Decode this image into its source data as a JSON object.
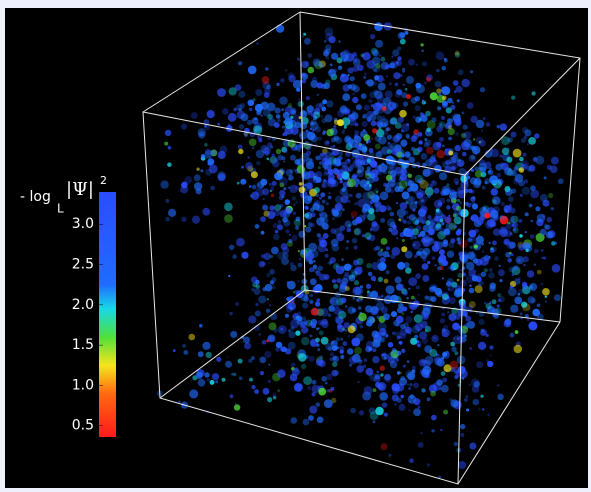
{
  "chart_data": {
    "type": "volume-render",
    "colorbar": {
      "label": "- log",
      "label_sub": "L",
      "label_main": "|Ψ|",
      "label_sup": "2",
      "lim": [
        0.36,
        3.4
      ],
      "ticks": [
        0.5,
        {
          "value": 1,
          "label": "1.0"
        },
        1.5,
        {
          "value": 2,
          "label": "2.0"
        },
        2.5,
        {
          "value": 3,
          "label": "3.0"
        }
      ],
      "colormap": [
        {
          "value": 0.36,
          "color": "#ff1a1a"
        },
        {
          "value": 0.9,
          "color": "#ff6a10"
        },
        {
          "value": 1.25,
          "color": "#f5e51e"
        },
        {
          "value": 1.6,
          "color": "#4fe03a"
        },
        {
          "value": 1.95,
          "color": "#19d8e8"
        },
        {
          "value": 2.25,
          "color": "#1f6cff"
        },
        {
          "value": 3.4,
          "color": "#2a4dff"
        }
      ]
    }
  }
}
